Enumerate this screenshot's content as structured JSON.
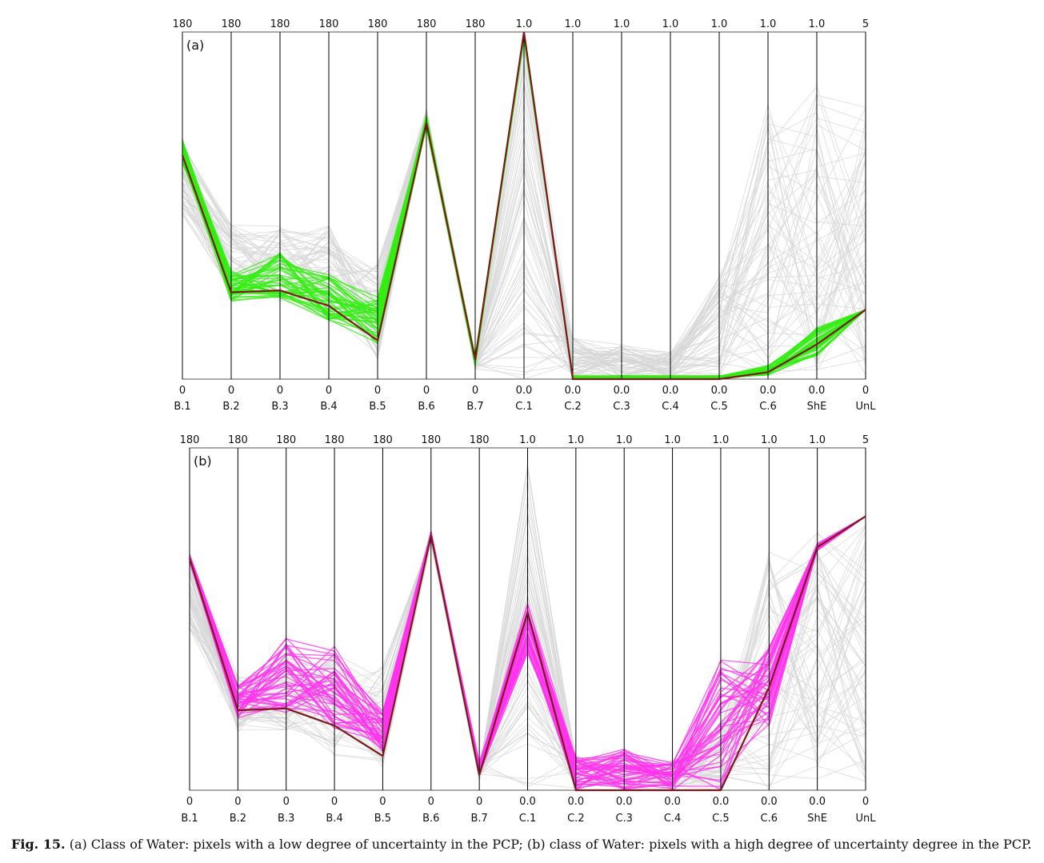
{
  "caption": {
    "label": "Fig. 15.",
    "text": " (a) Class of Water: pixels with a low degree of uncertainty in the PCP; (b) class of Water: pixels with a high degree of uncertainty degree in the PCP."
  },
  "chart_data": [
    {
      "type": "parallel_coordinates",
      "panel_label": "(a)",
      "axes": [
        "B.1",
        "B.2",
        "B.3",
        "B.4",
        "B.5",
        "B.6",
        "B.7",
        "C.1",
        "C.2",
        "C.3",
        "C.4",
        "C.5",
        "C.6",
        "ShE",
        "UnL"
      ],
      "axis_max_labels": [
        "180",
        "180",
        "180",
        "180",
        "180",
        "180",
        "180",
        "1.0",
        "1.0",
        "1.0",
        "1.0",
        "1.0",
        "1.0",
        "1.0",
        "5"
      ],
      "axis_min_labels": [
        "0",
        "0",
        "0",
        "0",
        "0",
        "0",
        "0",
        "0.0",
        "0.0",
        "0.0",
        "0.0",
        "0.0",
        "0.0",
        "0.0",
        "0"
      ],
      "axis_ranges": [
        [
          0,
          180
        ],
        [
          0,
          180
        ],
        [
          0,
          180
        ],
        [
          0,
          180
        ],
        [
          0,
          180
        ],
        [
          0,
          180
        ],
        [
          0,
          180
        ],
        [
          0,
          1
        ],
        [
          0,
          1
        ],
        [
          0,
          1
        ],
        [
          0,
          1
        ],
        [
          0,
          1
        ],
        [
          0,
          1
        ],
        [
          0,
          1
        ],
        [
          0,
          5
        ]
      ],
      "colors": {
        "background_lines": "#d6d6d6",
        "highlight": "#33ee11",
        "representative": "#7a1a1a",
        "axis": "#000000"
      },
      "background_band": {
        "low": [
          85,
          40,
          40,
          32,
          10,
          130,
          5,
          0.0,
          0.0,
          0.0,
          0.0,
          0.0,
          0.0,
          0.0,
          0
        ],
        "high": [
          125,
          80,
          80,
          80,
          60,
          140,
          12,
          1.0,
          0.12,
          0.1,
          0.08,
          0.3,
          0.8,
          0.85,
          4
        ]
      },
      "highlight_band": {
        "low": [
          112,
          40,
          42,
          30,
          18,
          130,
          7,
          0.98,
          0.0,
          0.0,
          0.0,
          0.0,
          0.01,
          0.06,
          1
        ],
        "high": [
          125,
          57,
          66,
          55,
          43,
          137,
          12,
          1.0,
          0.01,
          0.01,
          0.01,
          0.01,
          0.04,
          0.15,
          1
        ]
      },
      "representative": [
        116,
        45,
        46,
        38,
        20,
        133,
        10,
        1.0,
        0.0,
        0.0,
        0.0,
        0.0,
        0.02,
        0.1,
        1
      ]
    },
    {
      "type": "parallel_coordinates",
      "panel_label": "(b)",
      "axes": [
        "B.1",
        "B.2",
        "B.3",
        "B.4",
        "B.5",
        "B.6",
        "B.7",
        "C.1",
        "C.2",
        "C.3",
        "C.4",
        "C.5",
        "C.6",
        "ShE",
        "UnL"
      ],
      "axis_max_labels": [
        "180",
        "180",
        "180",
        "180",
        "180",
        "180",
        "180",
        "1.0",
        "1.0",
        "1.0",
        "1.0",
        "1.0",
        "1.0",
        "1.0",
        "5"
      ],
      "axis_min_labels": [
        "0",
        "0",
        "0",
        "0",
        "0",
        "0",
        "0",
        "0.0",
        "0.0",
        "0.0",
        "0.0",
        "0.0",
        "0.0",
        "0.0",
        "0"
      ],
      "axis_ranges": [
        [
          0,
          180
        ],
        [
          0,
          180
        ],
        [
          0,
          180
        ],
        [
          0,
          180
        ],
        [
          0,
          180
        ],
        [
          0,
          180
        ],
        [
          0,
          180
        ],
        [
          0,
          1
        ],
        [
          0,
          1
        ],
        [
          0,
          1
        ],
        [
          0,
          1
        ],
        [
          0,
          1
        ],
        [
          0,
          1
        ],
        [
          0,
          1
        ],
        [
          0,
          5
        ]
      ],
      "colors": {
        "background_lines": "#d6d6d6",
        "highlight": "#ff33ee",
        "representative": "#7a1a1a",
        "axis": "#000000"
      },
      "background_band": {
        "low": [
          85,
          30,
          30,
          18,
          12,
          130,
          5,
          0.0,
          0.0,
          0.0,
          0.0,
          0.0,
          0.0,
          0.0,
          0
        ],
        "high": [
          125,
          60,
          72,
          75,
          65,
          135,
          15,
          1.0,
          0.1,
          0.12,
          0.09,
          0.2,
          0.7,
          0.8,
          4
        ]
      },
      "highlight_band": {
        "low": [
          120,
          38,
          40,
          32,
          20,
          133,
          8,
          0.4,
          0.0,
          0.0,
          0.0,
          0.0,
          0.18,
          0.7,
          4
        ],
        "high": [
          124,
          55,
          80,
          77,
          43,
          136,
          15,
          0.55,
          0.1,
          0.12,
          0.08,
          0.38,
          0.42,
          0.72,
          4
        ]
      },
      "representative": [
        122,
        42,
        43,
        34,
        18,
        134,
        8,
        0.52,
        0.0,
        0.0,
        0.0,
        0.0,
        0.3,
        0.71,
        4
      ]
    }
  ]
}
